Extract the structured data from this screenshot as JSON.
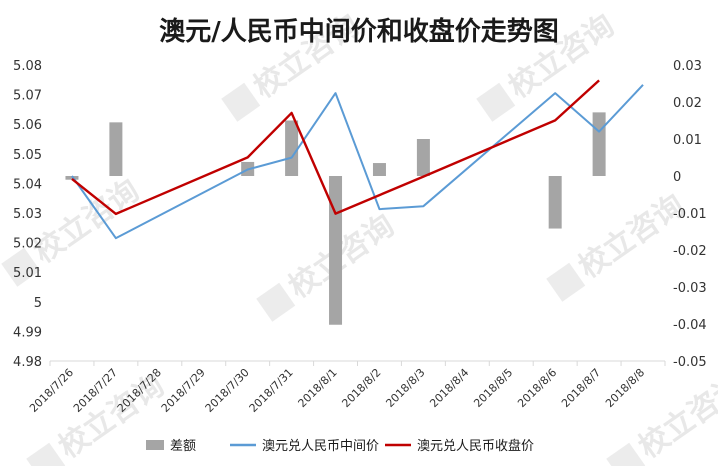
{
  "watermark": {
    "text": "校立咨询"
  },
  "chart_data": {
    "type": "bar+line",
    "title": "澳元/人民币中间价和收盘价走势图",
    "categories": [
      "2018/7/26",
      "2018/7/27",
      "2018/7/28",
      "2018/7/29",
      "2018/7/30",
      "2018/7/31",
      "2018/8/1",
      "2018/8/2",
      "2018/8/3",
      "2018/8/4",
      "2018/8/5",
      "2018/8/6",
      "2018/8/7",
      "2018/8/8"
    ],
    "y_left": {
      "min": 4.98,
      "max": 5.08,
      "ticks": [
        "4.98",
        "4.99",
        "5",
        "5.01",
        "5.02",
        "5.03",
        "5.04",
        "5.05",
        "5.06",
        "5.07",
        "5.08"
      ]
    },
    "y_right": {
      "min": -0.05,
      "max": 0.03,
      "ticks": [
        "-0.05",
        "-0.04",
        "-0.03",
        "-0.02",
        "-0.01",
        "0",
        "0.01",
        "0.02",
        "0.03"
      ]
    },
    "series": [
      {
        "name": "差额",
        "kind": "bar",
        "axis": "right",
        "color": "#a5a5a5",
        "values": [
          -0.001,
          0.0145,
          null,
          null,
          0.0038,
          0.015,
          -0.0402,
          0.0035,
          0.01,
          null,
          null,
          -0.0142,
          0.0172,
          null
        ]
      },
      {
        "name": "澳元兑人民币中间价",
        "kind": "line",
        "axis": "left",
        "color": "#5b9bd5",
        "values": [
          5.0425,
          5.0215,
          null,
          null,
          5.0447,
          5.0487,
          5.0705,
          5.0313,
          5.0323,
          null,
          null,
          5.0705,
          5.0575,
          5.0733
        ]
      },
      {
        "name": "澳元兑人民币收盘价",
        "kind": "line",
        "axis": "left",
        "color": "#c00000",
        "values": [
          5.0415,
          5.0297,
          null,
          null,
          5.0488,
          5.0638,
          5.0298,
          null,
          5.0423,
          null,
          null,
          5.0613,
          5.0748,
          null
        ]
      }
    ],
    "legend_position": "bottom",
    "grid": false
  }
}
